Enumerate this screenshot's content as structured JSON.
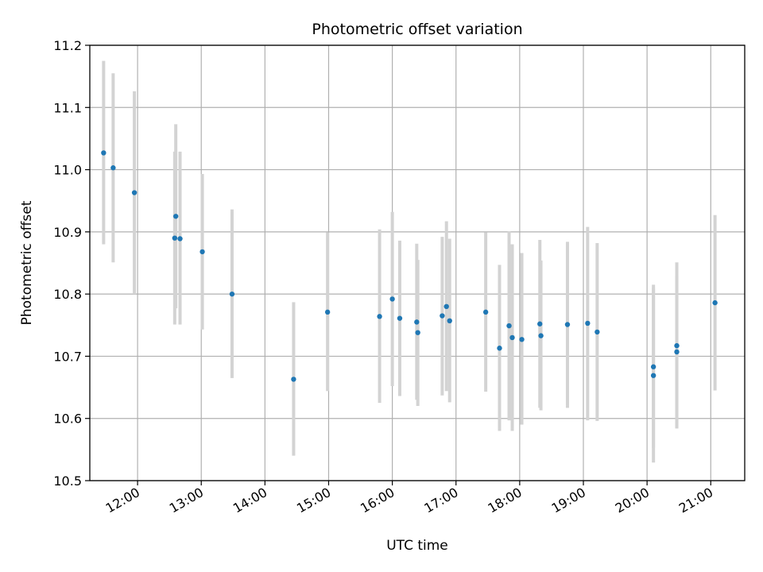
{
  "chart_data": {
    "type": "scatter",
    "title": "Photometric offset variation",
    "xlabel": "UTC time",
    "ylabel": "Photometric offset",
    "x_unit": "time of day (UTC)",
    "xlim": [
      "11:15",
      "21:32"
    ],
    "ylim": [
      10.5,
      11.2
    ],
    "x_ticks": [
      "12:00",
      "13:00",
      "14:00",
      "15:00",
      "16:00",
      "17:00",
      "18:00",
      "19:00",
      "20:00",
      "21:00"
    ],
    "y_ticks": [
      10.5,
      10.6,
      10.7,
      10.8,
      10.9,
      11.0,
      11.1,
      11.2
    ],
    "y_tick_labels": [
      "10.5",
      "10.6",
      "10.7",
      "10.8",
      "10.9",
      "11.0",
      "11.1",
      "11.2"
    ],
    "grid": true,
    "x_tick_rotation": "30deg",
    "colors": {
      "point": "#1f77b4",
      "errorbar": "#d3d3d3",
      "grid": "#b0b0b0"
    },
    "series": [
      {
        "points": [
          {
            "x": "11:28",
            "y": 11.027,
            "lo": 10.88,
            "hi": 11.175
          },
          {
            "x": "11:37",
            "y": 11.003,
            "lo": 10.851,
            "hi": 11.155
          },
          {
            "x": "11:57",
            "y": 10.963,
            "lo": 10.8,
            "hi": 11.126
          },
          {
            "x": "12:35",
            "y": 10.89,
            "lo": 10.751,
            "hi": 11.029
          },
          {
            "x": "12:36",
            "y": 10.925,
            "lo": 10.777,
            "hi": 11.073
          },
          {
            "x": "12:40",
            "y": 10.889,
            "lo": 10.751,
            "hi": 11.029
          },
          {
            "x": "13:01",
            "y": 10.868,
            "lo": 10.743,
            "hi": 10.993
          },
          {
            "x": "13:29",
            "y": 10.8,
            "lo": 10.665,
            "hi": 10.936
          },
          {
            "x": "14:27",
            "y": 10.663,
            "lo": 10.54,
            "hi": 10.787
          },
          {
            "x": "14:59",
            "y": 10.771,
            "lo": 10.644,
            "hi": 10.899
          },
          {
            "x": "15:48",
            "y": 10.764,
            "lo": 10.625,
            "hi": 10.904
          },
          {
            "x": "16:00",
            "y": 10.792,
            "lo": 10.652,
            "hi": 10.932
          },
          {
            "x": "16:07",
            "y": 10.761,
            "lo": 10.636,
            "hi": 10.886
          },
          {
            "x": "16:23",
            "y": 10.755,
            "lo": 10.63,
            "hi": 10.881
          },
          {
            "x": "16:24",
            "y": 10.738,
            "lo": 10.62,
            "hi": 10.855
          },
          {
            "x": "16:47",
            "y": 10.765,
            "lo": 10.637,
            "hi": 10.892
          },
          {
            "x": "16:51",
            "y": 10.78,
            "lo": 10.644,
            "hi": 10.917
          },
          {
            "x": "16:54",
            "y": 10.757,
            "lo": 10.626,
            "hi": 10.889
          },
          {
            "x": "17:28",
            "y": 10.771,
            "lo": 10.643,
            "hi": 10.899
          },
          {
            "x": "17:41",
            "y": 10.713,
            "lo": 10.58,
            "hi": 10.847
          },
          {
            "x": "17:50",
            "y": 10.749,
            "lo": 10.597,
            "hi": 10.901
          },
          {
            "x": "17:53",
            "y": 10.73,
            "lo": 10.58,
            "hi": 10.88
          },
          {
            "x": "18:02",
            "y": 10.727,
            "lo": 10.59,
            "hi": 10.866
          },
          {
            "x": "18:19",
            "y": 10.752,
            "lo": 10.617,
            "hi": 10.887
          },
          {
            "x": "18:20",
            "y": 10.733,
            "lo": 10.613,
            "hi": 10.854
          },
          {
            "x": "18:45",
            "y": 10.751,
            "lo": 10.617,
            "hi": 10.884
          },
          {
            "x": "19:04",
            "y": 10.753,
            "lo": 10.597,
            "hi": 10.908
          },
          {
            "x": "19:13",
            "y": 10.739,
            "lo": 10.596,
            "hi": 10.882
          },
          {
            "x": "20:06",
            "y": 10.683,
            "lo": 10.553,
            "hi": 10.815
          },
          {
            "x": "20:06",
            "y": 10.669,
            "lo": 10.529,
            "hi": 10.81
          },
          {
            "x": "20:28",
            "y": 10.717,
            "lo": 10.584,
            "hi": 10.851
          },
          {
            "x": "20:28",
            "y": 10.707,
            "lo": 10.584,
            "hi": 10.83
          },
          {
            "x": "21:04",
            "y": 10.786,
            "lo": 10.645,
            "hi": 10.927
          }
        ]
      }
    ]
  }
}
